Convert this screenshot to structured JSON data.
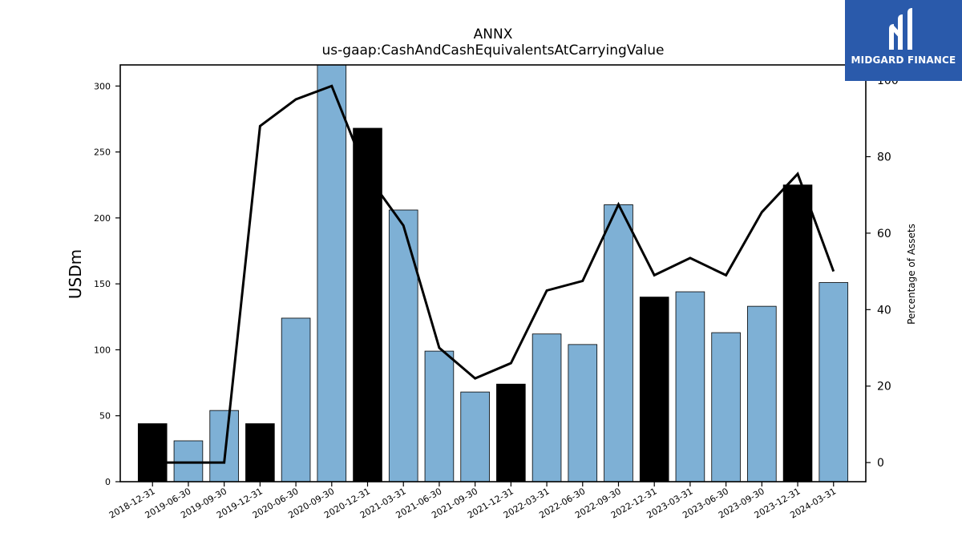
{
  "chart_data": {
    "type": "bar",
    "title": "ANNX",
    "subtitle": "us-gaap:CashAndCashEquivalentsAtCarryingValue",
    "ylabel": "USDm",
    "y2label": "Percentage of Assets",
    "categories": [
      "2018-12-31",
      "2019-06-30",
      "2019-09-30",
      "2019-12-31",
      "2020-06-30",
      "2020-09-30",
      "2020-12-31",
      "2021-03-31",
      "2021-06-30",
      "2021-09-30",
      "2021-12-31",
      "2022-03-31",
      "2022-06-30",
      "2022-09-30",
      "2022-12-31",
      "2023-03-31",
      "2023-06-30",
      "2023-09-30",
      "2023-12-31",
      "2024-03-31"
    ],
    "series": [
      {
        "type": "bar",
        "values": [
          44,
          31,
          54,
          44,
          124,
          316,
          268,
          206,
          99,
          68,
          74,
          112,
          104,
          210,
          140,
          144,
          113,
          133,
          225,
          151
        ],
        "highlight": [
          true,
          false,
          false,
          true,
          false,
          false,
          true,
          false,
          false,
          false,
          true,
          false,
          false,
          false,
          true,
          false,
          false,
          false,
          true,
          false
        ]
      },
      {
        "type": "line",
        "axis": "right",
        "values": [
          0,
          0,
          0,
          88,
          95,
          98.5,
          75,
          62,
          30,
          22,
          26,
          45,
          47.5,
          67.5,
          49,
          53.5,
          49,
          65.5,
          75.5,
          50
        ]
      }
    ],
    "ylim": [
      0,
      316
    ],
    "y2lim": [
      -5,
      104
    ],
    "yticks": [
      0,
      50,
      100,
      150,
      200,
      250,
      300
    ],
    "y2ticks": [
      0,
      20,
      40,
      60,
      80,
      100
    ],
    "grid": false,
    "colors": {
      "bar": "#7eb0d5",
      "highlight": "#000000",
      "line": "#000000"
    }
  },
  "logo": {
    "text": "MIDGARD FINANCE",
    "icon": "midgard-logo-icon"
  }
}
